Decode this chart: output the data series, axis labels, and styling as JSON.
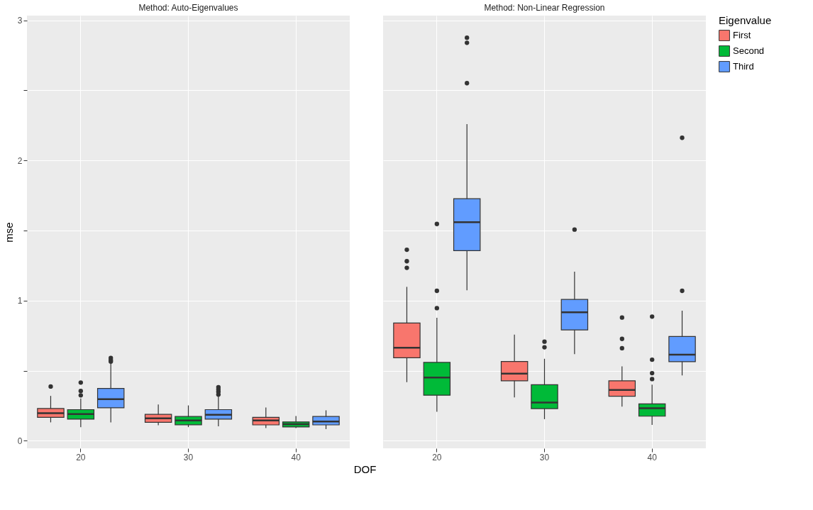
{
  "chart_data": [
    {
      "type": "box",
      "title": "Method: Auto-Eigenvalues",
      "xlabel": "DOF",
      "ylabel": "mse",
      "categories": [
        "20",
        "30",
        "40"
      ],
      "ylim": [
        -0.054,
        3.034
      ],
      "yticks": [
        0,
        {
          "value": 0.5,
          "label": null
        },
        1,
        {
          "value": 1.5,
          "label": null
        },
        2,
        {
          "value": 2.5,
          "label": null
        },
        3
      ],
      "grid": true,
      "legend": false,
      "series": [
        {
          "name": "First",
          "color": "#F8766D",
          "boxes": [
            {
              "low": 0.131,
              "q1": 0.167,
              "median": 0.196,
              "q3": 0.23,
              "high": 0.32,
              "outliers": [
                0.387
              ]
            },
            {
              "low": 0.111,
              "q1": 0.131,
              "median": 0.16,
              "q3": 0.188,
              "high": 0.258
            },
            {
              "low": 0.09,
              "q1": 0.113,
              "median": 0.145,
              "q3": 0.167,
              "high": 0.237
            }
          ]
        },
        {
          "name": "Second",
          "color": "#00BA38",
          "boxes": [
            {
              "low": 0.097,
              "q1": 0.154,
              "median": 0.19,
              "q3": 0.222,
              "high": 0.301,
              "outliers": [
                0.324,
                0.355,
                0.415
              ]
            },
            {
              "low": 0.097,
              "q1": 0.114,
              "median": 0.145,
              "q3": 0.173,
              "high": 0.252
            },
            {
              "low": 0.09,
              "q1": 0.098,
              "median": 0.118,
              "q3": 0.134,
              "high": 0.176
            }
          ]
        },
        {
          "name": "Third",
          "color": "#619CFF",
          "boxes": [
            {
              "low": 0.131,
              "q1": 0.235,
              "median": 0.297,
              "q3": 0.373,
              "high": 0.55,
              "outliers": [
                0.565,
                0.575,
                0.59
              ]
            },
            {
              "low": 0.103,
              "q1": 0.154,
              "median": 0.185,
              "q3": 0.222,
              "high": 0.32,
              "outliers": [
                0.33,
                0.35,
                0.366,
                0.382
              ]
            },
            {
              "low": 0.083,
              "q1": 0.113,
              "median": 0.137,
              "q3": 0.173,
              "high": 0.217
            }
          ]
        }
      ]
    },
    {
      "type": "box",
      "title": "Method: Non-Linear Regression",
      "legend_title": "Eigenvalue",
      "categories": [
        "20",
        "30",
        "40"
      ],
      "ylim": [
        -0.054,
        3.034
      ],
      "yticks": [
        0,
        {
          "value": 0.5,
          "label": null
        },
        1,
        {
          "value": 1.5,
          "label": null
        },
        2,
        {
          "value": 2.5,
          "label": null
        },
        3
      ],
      "tick_labels": "x",
      "grid": true,
      "legend": "right",
      "series": [
        {
          "name": "First",
          "color": "#F8766D",
          "boxes": [
            {
              "low": 0.418,
              "q1": 0.592,
              "median": 0.663,
              "q3": 0.84,
              "high": 1.098,
              "outliers": [
                1.234,
                1.281,
                1.363
              ]
            },
            {
              "low": 0.309,
              "q1": 0.428,
              "median": 0.479,
              "q3": 0.565,
              "high": 0.757
            },
            {
              "low": 0.243,
              "q1": 0.317,
              "median": 0.363,
              "q3": 0.428,
              "high": 0.531,
              "outliers": [
                0.66,
                0.727,
                0.879
              ]
            }
          ]
        },
        {
          "name": "Second",
          "color": "#00BA38",
          "boxes": [
            {
              "low": 0.207,
              "q1": 0.325,
              "median": 0.451,
              "q3": 0.559,
              "high": 0.877,
              "outliers": [
                0.946,
                1.07,
                1.547
              ]
            },
            {
              "low": 0.154,
              "q1": 0.229,
              "median": 0.273,
              "q3": 0.4,
              "high": 0.585,
              "outliers": [
                0.667,
                0.707
              ]
            },
            {
              "low": 0.113,
              "q1": 0.175,
              "median": 0.232,
              "q3": 0.263,
              "high": 0.4,
              "outliers": [
                0.44,
                0.482,
                0.578,
                0.886
              ]
            }
          ]
        },
        {
          "name": "Third",
          "color": "#619CFF",
          "boxes": [
            {
              "low": 1.074,
              "q1": 1.356,
              "median": 1.56,
              "q3": 1.727,
              "high": 2.26,
              "outliers": [
                2.552,
                2.84,
                2.876
              ]
            },
            {
              "low": 0.618,
              "q1": 0.791,
              "median": 0.917,
              "q3": 1.008,
              "high": 1.207,
              "outliers": [
                1.507
              ]
            },
            {
              "low": 0.466,
              "q1": 0.564,
              "median": 0.614,
              "q3": 0.744,
              "high": 0.928,
              "outliers": [
                1.07,
                2.162
              ]
            }
          ]
        }
      ]
    }
  ]
}
